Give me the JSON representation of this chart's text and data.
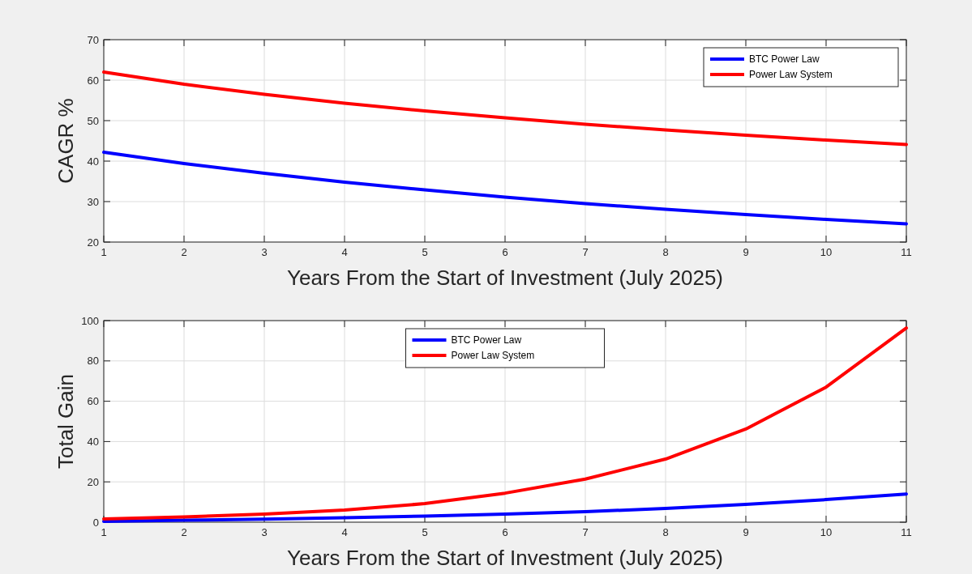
{
  "chart_data": [
    {
      "type": "line",
      "ylabel": "CAGR %",
      "xlabel": "Years From the Start of Investment (July 2025)",
      "x": [
        1,
        2,
        3,
        4,
        5,
        6,
        7,
        8,
        9,
        10,
        11
      ],
      "xlim": [
        1,
        11
      ],
      "xticks": [
        1,
        2,
        3,
        4,
        5,
        6,
        7,
        8,
        9,
        10,
        11
      ],
      "ylim": [
        20,
        70
      ],
      "yticks": [
        20,
        30,
        40,
        50,
        60,
        70
      ],
      "grid": true,
      "legend": "top right",
      "series": [
        {
          "name": "BTC Power Law",
          "color": "#0000ff",
          "values": [
            42.2,
            39.4,
            37,
            34.8,
            32.9,
            31.1,
            29.5,
            28.1,
            26.8,
            25.6,
            24.5
          ]
        },
        {
          "name": "Power Law System",
          "color": "#ff0000",
          "values": [
            62,
            59,
            56.5,
            54.3,
            52.4,
            50.7,
            49.1,
            47.7,
            46.4,
            45.2,
            44.1
          ]
        }
      ]
    },
    {
      "type": "line",
      "ylabel": "Total Gain",
      "xlabel": "Years From the Start of Investment (July 2025)",
      "x": [
        1,
        2,
        3,
        4,
        5,
        6,
        7,
        8,
        9,
        10,
        11
      ],
      "xlim": [
        1,
        11
      ],
      "xticks": [
        1,
        2,
        3,
        4,
        5,
        6,
        7,
        8,
        9,
        10,
        11
      ],
      "ylim": [
        0,
        100
      ],
      "yticks": [
        0,
        20,
        40,
        60,
        80,
        100
      ],
      "grid": true,
      "legend": "top",
      "series": [
        {
          "name": "BTC Power Law",
          "color": "#0000ff",
          "values": [
            0.4,
            1,
            1.5,
            2.2,
            3,
            4,
            5.2,
            6.8,
            8.8,
            11.2,
            14
          ]
        },
        {
          "name": "Power Law System",
          "color": "#ff0000",
          "values": [
            1.6,
            2.6,
            4,
            6,
            9.2,
            14.4,
            21.4,
            31.3,
            46.2,
            67,
            96.3
          ]
        }
      ]
    }
  ]
}
